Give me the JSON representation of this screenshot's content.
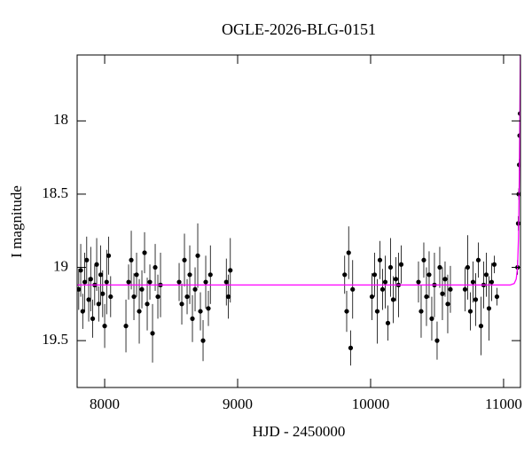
{
  "chart_data": {
    "type": "scatter",
    "title": "OGLE-2026-BLG-0151",
    "x_label": "HJD - 2450000",
    "y_label": "I magnitude",
    "xlim": [
      7793,
      11127
    ],
    "ylim": [
      19.82,
      17.55
    ],
    "xticks": [
      8000,
      9000,
      10000,
      11000
    ],
    "yticks": [
      18,
      18.5,
      19,
      19.5
    ],
    "series": [
      {
        "color": "#000000",
        "x": [
          7805,
          7820,
          7835,
          7850,
          7865,
          7880,
          7895,
          7910,
          7925,
          7940,
          7955,
          7970,
          7985,
          8000,
          8015,
          8030,
          8045,
          8160,
          8180,
          8200,
          8220,
          8240,
          8260,
          8280,
          8300,
          8320,
          8340,
          8360,
          8380,
          8400,
          8420,
          8560,
          8580,
          8600,
          8620,
          8640,
          8660,
          8680,
          8700,
          8720,
          8740,
          8760,
          8780,
          8795,
          8915,
          8930,
          8945,
          9805,
          9820,
          9835,
          9850,
          9865,
          10010,
          10030,
          10050,
          10070,
          10090,
          10110,
          10130,
          10150,
          10170,
          10190,
          10210,
          10230,
          10360,
          10380,
          10400,
          10420,
          10440,
          10460,
          10480,
          10500,
          10520,
          10540,
          10560,
          10580,
          10600,
          10710,
          10730,
          10750,
          10770,
          10790,
          10810,
          10830,
          10850,
          10870,
          10890,
          10910,
          10930,
          10950,
          11105,
          11110,
          11114,
          11118,
          11121,
          11124
        ],
        "values": [
          19.15,
          19.02,
          19.3,
          19.1,
          18.95,
          19.22,
          19.08,
          19.35,
          19.12,
          18.98,
          19.25,
          19.05,
          19.18,
          19.4,
          19.1,
          18.92,
          19.2,
          19.4,
          19.1,
          18.95,
          19.2,
          19.05,
          19.3,
          19.15,
          18.9,
          19.25,
          19.1,
          19.45,
          19.0,
          19.2,
          19.12,
          19.1,
          19.25,
          18.95,
          19.2,
          19.05,
          19.35,
          19.15,
          18.92,
          19.3,
          19.5,
          19.1,
          19.28,
          19.05,
          19.1,
          19.2,
          19.02,
          19.05,
          19.3,
          18.9,
          19.55,
          19.15,
          19.2,
          19.05,
          19.3,
          18.95,
          19.15,
          19.1,
          19.38,
          19.0,
          19.22,
          19.08,
          19.12,
          18.98,
          19.1,
          19.3,
          18.95,
          19.2,
          19.05,
          19.35,
          19.12,
          19.5,
          19.0,
          19.18,
          19.08,
          19.25,
          19.15,
          19.15,
          19.0,
          19.3,
          19.1,
          19.22,
          18.95,
          19.4,
          19.12,
          19.05,
          19.28,
          19.1,
          18.98,
          19.2,
          19.0,
          18.7,
          18.5,
          18.3,
          18.1,
          17.95
        ],
        "errors": [
          0.14,
          0.18,
          0.12,
          0.2,
          0.16,
          0.15,
          0.22,
          0.13,
          0.14,
          0.18,
          0.12,
          0.2,
          0.16,
          0.15,
          0.22,
          0.13,
          0.14,
          0.18,
          0.12,
          0.2,
          0.16,
          0.15,
          0.22,
          0.13,
          0.14,
          0.18,
          0.12,
          0.2,
          0.16,
          0.15,
          0.22,
          0.13,
          0.14,
          0.18,
          0.12,
          0.2,
          0.16,
          0.15,
          0.22,
          0.13,
          0.14,
          0.18,
          0.12,
          0.2,
          0.16,
          0.15,
          0.22,
          0.13,
          0.14,
          0.18,
          0.12,
          0.2,
          0.16,
          0.15,
          0.22,
          0.13,
          0.14,
          0.18,
          0.12,
          0.2,
          0.16,
          0.15,
          0.22,
          0.13,
          0.14,
          0.18,
          0.12,
          0.2,
          0.16,
          0.15,
          0.22,
          0.13,
          0.14,
          0.18,
          0.12,
          0.2,
          0.16,
          0.15,
          0.22,
          0.13,
          0.14,
          0.18,
          0.12,
          0.2,
          0.16,
          0.15,
          0.22,
          0.13,
          0.06,
          0.06,
          0.05,
          0.05,
          0.04,
          0.04,
          0.04,
          0.04
        ]
      },
      {
        "type": "line",
        "color": "#ff00ff",
        "x": [
          7793,
          11050,
          11080,
          11095,
          11105,
          11112,
          11118,
          11122,
          11126
        ],
        "values": [
          19.12,
          19.12,
          19.11,
          19.08,
          19.0,
          18.8,
          18.4,
          18.0,
          17.55
        ]
      }
    ]
  }
}
